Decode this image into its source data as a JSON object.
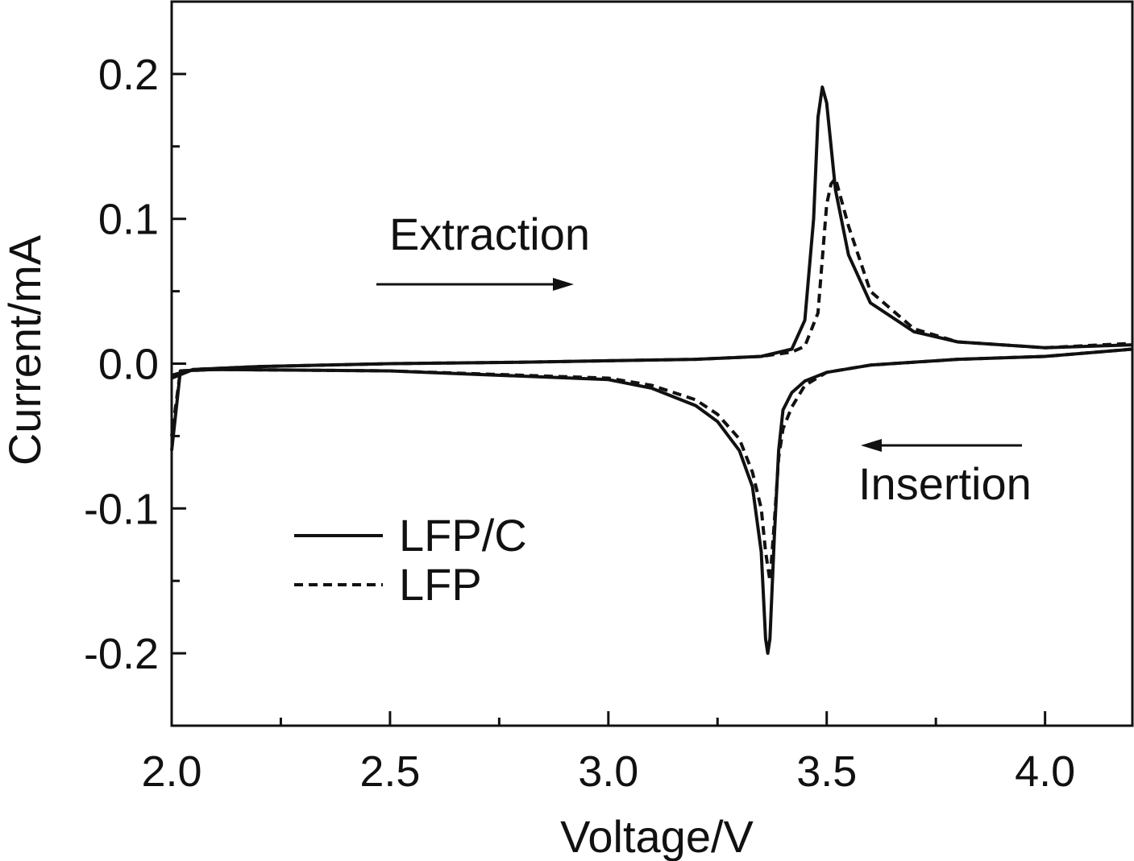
{
  "chart_data": {
    "type": "line",
    "xlabel": "Voltage/V",
    "ylabel": "Current/mA",
    "xlim": [
      2.0,
      4.2
    ],
    "ylim": [
      -0.25,
      0.25
    ],
    "x_ticks": [
      "2.0",
      "2.5",
      "3.0",
      "3.5",
      "4.0"
    ],
    "y_ticks": [
      "0.2",
      "0.1",
      "0.0",
      "-0.1",
      "-0.2"
    ],
    "annotations": [
      {
        "text": "Extraction",
        "arrow": "right"
      },
      {
        "text": "Insertion",
        "arrow": "left"
      }
    ],
    "legend_position": "bottom-left",
    "series": [
      {
        "name": "LFP/C",
        "style": "solid",
        "color": "#111111",
        "anodic": {
          "x": [
            2.0,
            2.05,
            2.2,
            2.5,
            2.8,
            3.0,
            3.2,
            3.35,
            3.42,
            3.45,
            3.47,
            3.48,
            3.49,
            3.5,
            3.52,
            3.55,
            3.6,
            3.7,
            3.8,
            4.0,
            4.2
          ],
          "y": [
            -0.01,
            -0.004,
            -0.002,
            0.0,
            0.001,
            0.002,
            0.003,
            0.005,
            0.01,
            0.03,
            0.1,
            0.17,
            0.191,
            0.18,
            0.12,
            0.075,
            0.042,
            0.022,
            0.015,
            0.011,
            0.013
          ]
        },
        "cathodic": {
          "x": [
            4.2,
            4.0,
            3.8,
            3.6,
            3.5,
            3.45,
            3.42,
            3.4,
            3.39,
            3.38,
            3.37,
            3.365,
            3.36,
            3.35,
            3.33,
            3.3,
            3.25,
            3.2,
            3.1,
            3.0,
            2.5,
            2.1,
            2.02,
            2.0
          ],
          "y": [
            0.01,
            0.005,
            0.003,
            -0.001,
            -0.006,
            -0.012,
            -0.02,
            -0.032,
            -0.06,
            -0.12,
            -0.19,
            -0.2,
            -0.19,
            -0.13,
            -0.085,
            -0.06,
            -0.04,
            -0.029,
            -0.017,
            -0.011,
            -0.005,
            -0.004,
            -0.005,
            -0.06
          ]
        }
      },
      {
        "name": "LFP",
        "style": "dashed",
        "color": "#111111",
        "anodic": {
          "x": [
            2.0,
            2.05,
            2.2,
            2.5,
            2.8,
            3.0,
            3.2,
            3.35,
            3.42,
            3.45,
            3.48,
            3.5,
            3.51,
            3.52,
            3.55,
            3.6,
            3.7,
            3.8,
            4.0,
            4.2
          ],
          "y": [
            -0.008,
            -0.004,
            -0.002,
            0.0,
            0.001,
            0.002,
            0.003,
            0.005,
            0.008,
            0.012,
            0.035,
            0.11,
            0.124,
            0.128,
            0.095,
            0.05,
            0.024,
            0.015,
            0.011,
            0.014
          ]
        },
        "cathodic": {
          "x": [
            4.2,
            4.0,
            3.8,
            3.6,
            3.5,
            3.45,
            3.42,
            3.4,
            3.39,
            3.38,
            3.37,
            3.36,
            3.35,
            3.33,
            3.3,
            3.25,
            3.2,
            3.1,
            3.0,
            2.5,
            2.1,
            2.02,
            2.0
          ],
          "y": [
            0.01,
            0.005,
            0.003,
            -0.001,
            -0.006,
            -0.015,
            -0.03,
            -0.045,
            -0.065,
            -0.11,
            -0.15,
            -0.13,
            -0.1,
            -0.075,
            -0.052,
            -0.035,
            -0.025,
            -0.015,
            -0.01,
            -0.005,
            -0.004,
            -0.005,
            -0.05
          ]
        }
      }
    ]
  }
}
